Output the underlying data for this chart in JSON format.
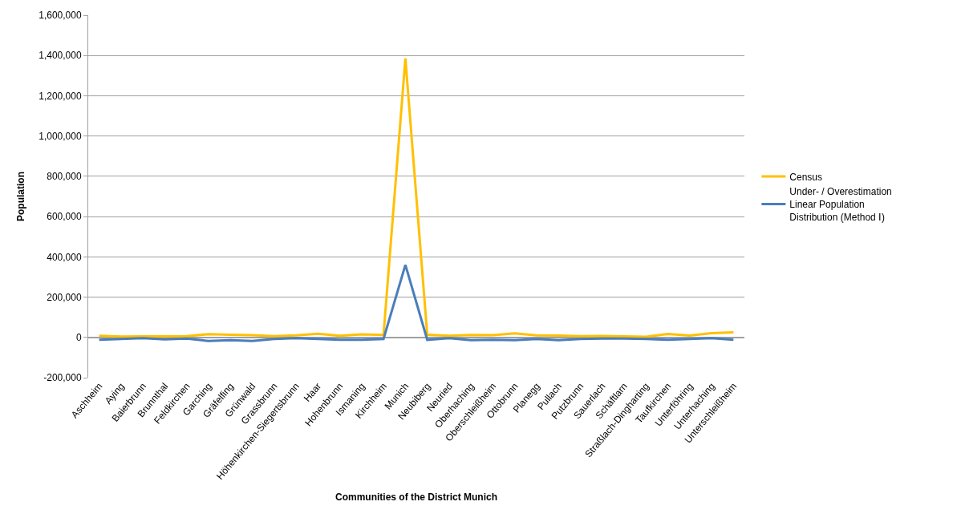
{
  "chart_data": {
    "type": "line",
    "xlabel": "Communities of the District Munich",
    "ylabel": "Population",
    "categories": [
      "Aschheim",
      "Aying",
      "Baierbrunn",
      "Brunnthal",
      "Feldkirchen",
      "Garching",
      "Gräfelfing",
      "Grünwald",
      "Grassbrunn",
      "Höhenkirchen-Siegertsbrunn",
      "Haar",
      "Hohenbrunn",
      "Ismaning",
      "Kirchheim",
      "Munich",
      "Neubiberg",
      "Neuried",
      "Oberhaching",
      "Oberschleißheim",
      "Ottobrunn",
      "Planegg",
      "Pullach",
      "Putzbrunn",
      "Sauerlach",
      "Schäftlarn",
      "Straßlach-Dingharting",
      "Taufkirchen",
      "Unterföhring",
      "Unterhaching",
      "Unterschleißheim"
    ],
    "series": [
      {
        "name": "Census",
        "color": "#ffc000",
        "values": [
          8000,
          4000,
          5000,
          5000,
          6000,
          16000,
          13000,
          11000,
          6000,
          10000,
          18000,
          8000,
          15000,
          12000,
          1385000,
          13000,
          8000,
          12000,
          11000,
          20000,
          10000,
          9000,
          6000,
          7000,
          5000,
          3000,
          17000,
          9000,
          21000,
          25000
        ]
      },
      {
        "name": "Under- / Overestimation Linear Population Distribution (Method Ⅰ)",
        "color": "#4a7ebb",
        "values": [
          -12000,
          -8000,
          -4000,
          -10000,
          -6000,
          -18000,
          -14000,
          -18000,
          -8000,
          -4000,
          -8000,
          -12000,
          -12000,
          -8000,
          360000,
          -12000,
          -4000,
          -14000,
          -12000,
          -14000,
          -8000,
          -14000,
          -8000,
          -6000,
          -6000,
          -8000,
          -12000,
          -8000,
          -4000,
          -12000
        ]
      }
    ],
    "ylim": [
      -200000,
      1600000
    ],
    "yticks": [
      {
        "value": -200000,
        "label": "-200,000"
      },
      {
        "value": 0,
        "label": "0"
      },
      {
        "value": 200000,
        "label": "200,000"
      },
      {
        "value": 400000,
        "label": "400,000"
      },
      {
        "value": 600000,
        "label": "600,000"
      },
      {
        "value": 800000,
        "label": "800,000"
      },
      {
        "value": 1000000,
        "label": "1,000,000"
      },
      {
        "value": 1200000,
        "label": "1,200,000"
      },
      {
        "value": 1400000,
        "label": "1,400,000"
      },
      {
        "value": 1600000,
        "label": "1,600,000"
      }
    ],
    "grid": "y",
    "legend": "right",
    "marker": "none",
    "line_style": "solid"
  }
}
